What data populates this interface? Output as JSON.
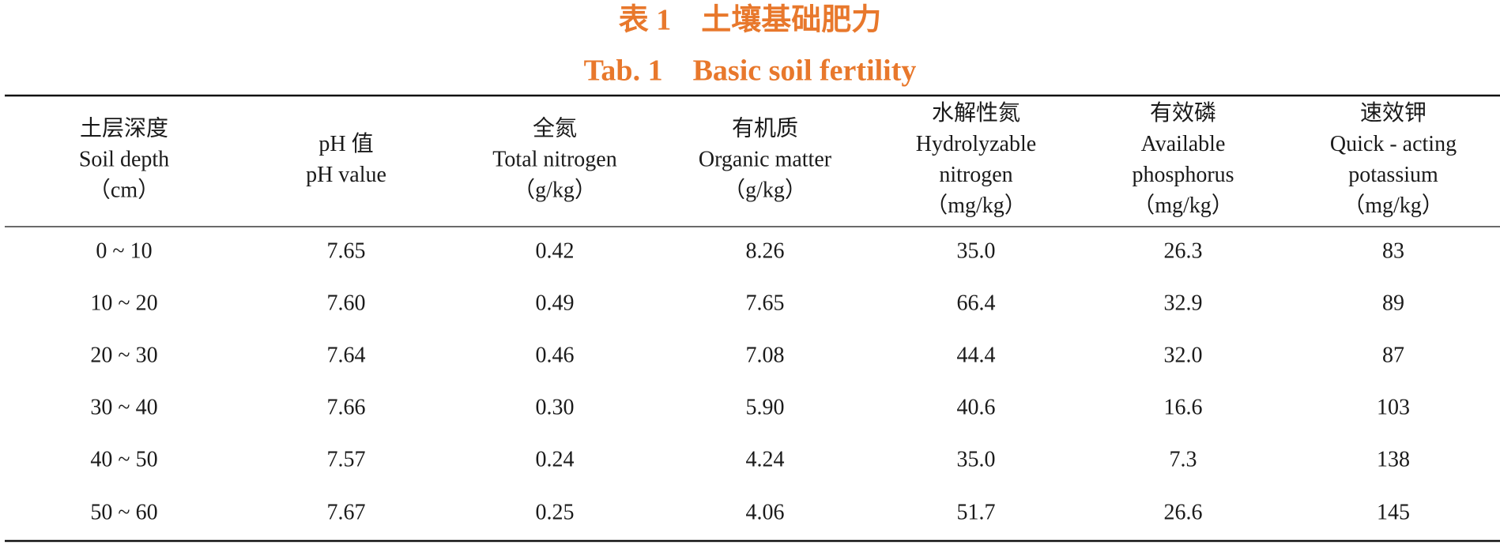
{
  "title_cn": "表 1　土壤基础肥力",
  "title_en": "Tab. 1　Basic soil fertility",
  "table": {
    "header": [
      [
        "土层深度",
        "Soil depth",
        "（cm）"
      ],
      [
        "pH 值",
        "pH value"
      ],
      [
        "全氮",
        "Total nitrogen",
        "（g/kg）"
      ],
      [
        "有机质",
        "Organic matter",
        "（g/kg）"
      ],
      [
        "水解性氮",
        "Hydrolyzable",
        "nitrogen",
        "（mg/kg）"
      ],
      [
        "有效磷",
        "Available",
        "phosphorus",
        "（mg/kg）"
      ],
      [
        "速效钾",
        "Quick - acting",
        "potassium",
        "（mg/kg）"
      ]
    ],
    "rows": [
      [
        "0 ~ 10",
        "7.65",
        "0.42",
        "8.26",
        "35.0",
        "26.3",
        "83"
      ],
      [
        "10 ~ 20",
        "7.60",
        "0.49",
        "7.65",
        "66.4",
        "32.9",
        "89"
      ],
      [
        "20 ~ 30",
        "7.64",
        "0.46",
        "7.08",
        "44.4",
        "32.0",
        "87"
      ],
      [
        "30 ~ 40",
        "7.66",
        "0.30",
        "5.90",
        "40.6",
        "16.6",
        "103"
      ],
      [
        "40 ~ 50",
        "7.57",
        "0.24",
        "4.24",
        "35.0",
        "7.3",
        "138"
      ],
      [
        "50 ~ 60",
        "7.67",
        "0.25",
        "4.06",
        "51.7",
        "26.6",
        "145"
      ]
    ]
  }
}
